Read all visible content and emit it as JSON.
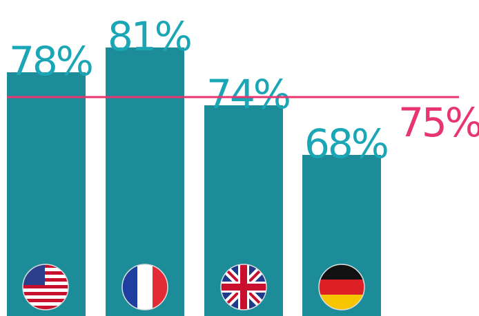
{
  "chart_data": {
    "type": "bar",
    "categories": [
      null,
      null,
      null,
      null
    ],
    "values": [
      78,
      81,
      74,
      68
    ],
    "value_labels": [
      "78%",
      "81%",
      "74%",
      "68%"
    ],
    "color": "#1b8c98",
    "label_color": "#1ba6b5",
    "ylim": [
      48.5,
      86.75
    ],
    "reference_line": {
      "value": 75,
      "label": "75%",
      "color": "#e8346f"
    }
  }
}
